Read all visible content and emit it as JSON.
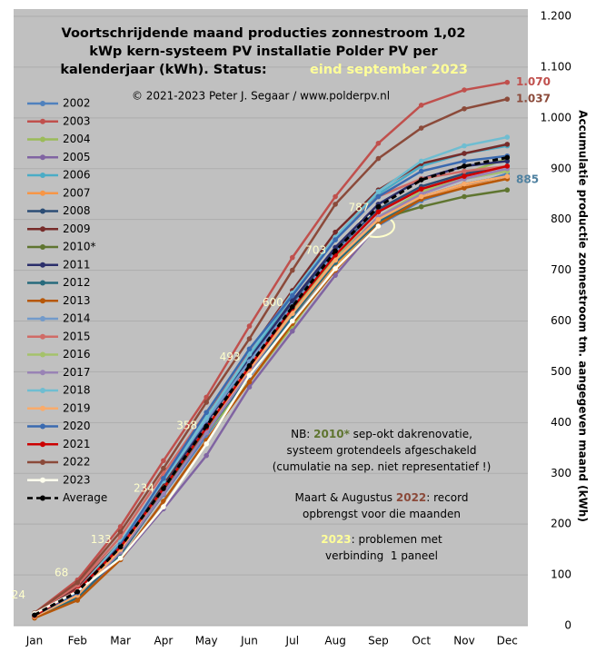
{
  "chart_data": {
    "type": "line",
    "title_lines": [
      "Voortschrijdende maand producties zonnestroom 1,02",
      "kWp kern-systeem PV installatie Polder PV per",
      "kalenderjaar (kWh). Status: "
    ],
    "status": "eind september 2023",
    "status_color": "#ffff99",
    "copyright": "© 2021-2023 Peter J. Segaar / www.polderpv.nl",
    "ylabel": "Accumulatie productie zonnestroom tm. aangegeven maand (kWh)",
    "categories": [
      "Jan",
      "Feb",
      "Mar",
      "Apr",
      "May",
      "Jun",
      "Jul",
      "Aug",
      "Sep",
      "Oct",
      "Nov",
      "Dec"
    ],
    "ylim": [
      0,
      1200
    ],
    "yticks": [
      0,
      100,
      200,
      300,
      400,
      500,
      600,
      700,
      800,
      900,
      {
        "value": 1000,
        "label": "1.000"
      },
      {
        "value": 1100,
        "label": "1.100"
      },
      {
        "value": 1200,
        "label": "1.200"
      }
    ],
    "grid": true,
    "legend": "left",
    "series": [
      {
        "name": "2002",
        "color": "#4f81bd",
        "values": [
          22,
          67,
          147,
          258,
          374,
          490,
          605,
          708,
          788,
          837,
          863,
          890
        ]
      },
      {
        "name": "2003",
        "color": "#c0504d",
        "values": [
          25,
          90,
          195,
          325,
          450,
          590,
          725,
          845,
          950,
          1025,
          1055,
          1070
        ]
      },
      {
        "name": "2004",
        "color": "#9bbb59",
        "values": [
          18,
          60,
          145,
          270,
          380,
          480,
          590,
          705,
          800,
          855,
          890,
          920
        ]
      },
      {
        "name": "2005",
        "color": "#8064a2",
        "values": [
          20,
          55,
          130,
          230,
          335,
          470,
          580,
          690,
          790,
          845,
          870,
          885
        ]
      },
      {
        "name": "2006",
        "color": "#4bacc6",
        "values": [
          22,
          70,
          160,
          280,
          410,
          530,
          650,
          760,
          850,
          905,
          930,
          945
        ]
      },
      {
        "name": "2007",
        "color": "#f79646",
        "values": [
          20,
          62,
          150,
          265,
          385,
          500,
          610,
          710,
          795,
          840,
          865,
          880
        ]
      },
      {
        "name": "2008",
        "color": "#2c4d75",
        "values": [
          22,
          70,
          160,
          275,
          400,
          520,
          635,
          740,
          820,
          865,
          890,
          905
        ]
      },
      {
        "name": "2009",
        "color": "#772c2a",
        "values": [
          25,
          75,
          165,
          280,
          410,
          540,
          660,
          775,
          858,
          910,
          930,
          948
        ]
      },
      {
        "name": "2010*",
        "color": "#5f7530",
        "values": [
          22,
          65,
          150,
          265,
          385,
          500,
          615,
          720,
          800,
          825,
          845,
          858
        ]
      },
      {
        "name": "2011",
        "color": "#2b2f6b",
        "values": [
          20,
          60,
          150,
          270,
          400,
          525,
          640,
          745,
          830,
          880,
          905,
          915
        ]
      },
      {
        "name": "2012",
        "color": "#276a7c",
        "values": [
          18,
          55,
          140,
          260,
          380,
          495,
          610,
          715,
          795,
          845,
          870,
          885
        ]
      },
      {
        "name": "2013",
        "color": "#b65708",
        "values": [
          15,
          50,
          130,
          245,
          365,
          480,
          595,
          700,
          790,
          840,
          862,
          880
        ]
      },
      {
        "name": "2014",
        "color": "#729aca",
        "values": [
          22,
          70,
          160,
          285,
          405,
          520,
          630,
          735,
          815,
          860,
          880,
          895
        ]
      },
      {
        "name": "2015",
        "color": "#d06b66",
        "values": [
          24,
          80,
          175,
          300,
          420,
          540,
          655,
          765,
          845,
          880,
          895,
          905
        ]
      },
      {
        "name": "2016",
        "color": "#a5c26b",
        "values": [
          20,
          62,
          150,
          270,
          390,
          500,
          620,
          725,
          805,
          855,
          880,
          895
        ]
      },
      {
        "name": "2017",
        "color": "#9983b5",
        "values": [
          20,
          60,
          145,
          260,
          380,
          500,
          615,
          720,
          805,
          850,
          880,
          900
        ]
      },
      {
        "name": "2018",
        "color": "#6fbdd1",
        "values": [
          22,
          70,
          165,
          285,
          410,
          535,
          655,
          765,
          855,
          915,
          945,
          962
        ]
      },
      {
        "name": "2019",
        "color": "#f9ab6b",
        "values": [
          18,
          60,
          150,
          270,
          390,
          505,
          615,
          720,
          800,
          845,
          870,
          885
        ]
      },
      {
        "name": "2020",
        "color": "#3a6ab0",
        "values": [
          20,
          65,
          160,
          290,
          420,
          545,
          650,
          760,
          845,
          895,
          915,
          925
        ]
      },
      {
        "name": "2021",
        "color": "#cc0000",
        "values": [
          20,
          70,
          155,
          270,
          390,
          510,
          625,
          730,
          815,
          860,
          885,
          905
        ]
      },
      {
        "name": "2022",
        "color": "#8b4a3a",
        "values": [
          25,
          85,
          185,
          310,
          440,
          565,
          700,
          830,
          920,
          980,
          1018,
          1037
        ]
      },
      {
        "name": "2023",
        "color": "#ffffee",
        "values": [
          24,
          68,
          133,
          234,
          358,
          493,
          600,
          703,
          787,
          null,
          null,
          null
        ],
        "labelled": true
      },
      {
        "name": "Average",
        "color": "#000000",
        "dashed": true,
        "values": [
          21,
          67,
          155,
          270,
          393,
          512,
          628,
          738,
          825,
          878,
          905,
          922
        ]
      }
    ],
    "end_labels": [
      {
        "text": "1.070",
        "color": "#c0504d",
        "value": 1070
      },
      {
        "text": "1.037",
        "color": "#8b4a3a",
        "value": 1037
      },
      {
        "text": "885",
        "color": "#4f81a0",
        "value": 885
      }
    ],
    "notes": [
      [
        [
          {
            "text": "NB: ",
            "color": "#000000"
          },
          {
            "text": "2010*",
            "color": "#5f7530",
            "bold": true
          },
          {
            "text": " sep-okt dakrenovatie,",
            "color": "#000000"
          }
        ],
        [
          {
            "text": "systeem grotendeels afgeschakeld",
            "color": "#000000"
          }
        ],
        [
          {
            "text": "(cumulatie na sep. niet representatief !)",
            "color": "#000000"
          }
        ]
      ],
      [
        [
          {
            "text": "Maart & Augustus ",
            "color": "#000000"
          },
          {
            "text": "2022",
            "color": "#8b4a3a",
            "bold": true
          },
          {
            "text": ": record",
            "color": "#000000"
          }
        ],
        [
          {
            "text": "opbrengst voor die maanden",
            "color": "#000000"
          }
        ]
      ],
      [
        [
          {
            "text": "2023",
            "color": "#ffff99",
            "bold": true
          },
          {
            "text": ": problemen met",
            "color": "#000000"
          }
        ],
        [
          {
            "text": "verbinding  1 paneel",
            "color": "#000000"
          }
        ]
      ]
    ]
  }
}
